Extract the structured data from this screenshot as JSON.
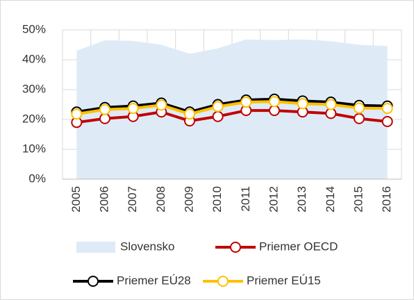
{
  "chart_data": {
    "type": "line",
    "categories": [
      "2005",
      "2006",
      "2007",
      "2008",
      "2009",
      "2010",
      "2011",
      "2012",
      "2013",
      "2014",
      "2015",
      "2016"
    ],
    "series": [
      {
        "name": "Slovensko",
        "type": "area",
        "color": "#deebf7",
        "values": [
          43,
          46.5,
          46.3,
          45,
          42,
          43.8,
          46.8,
          46.6,
          46.8,
          46.2,
          45,
          44.6
        ]
      },
      {
        "name": "Priemer OECD",
        "type": "line",
        "color": "#c00000",
        "values": [
          19,
          20.3,
          21,
          22.5,
          19.5,
          21,
          23,
          23,
          22.5,
          22,
          20.3,
          19.3
        ]
      },
      {
        "name": "Priemer EÚ28",
        "type": "line",
        "color": "#000000",
        "values": [
          22.5,
          24,
          24.5,
          25.5,
          22.5,
          25,
          26.5,
          26.8,
          26.2,
          25.8,
          24.7,
          24.5
        ]
      },
      {
        "name": "Priemer EÚ15",
        "type": "line",
        "color": "#ffc000",
        "values": [
          21.8,
          23.3,
          23.7,
          24.8,
          21.8,
          24.3,
          25.8,
          26,
          25.3,
          25,
          23.8,
          23.7
        ]
      }
    ],
    "ylim": [
      0,
      50
    ],
    "yticks": [
      {
        "value": 0,
        "label": "0%"
      },
      {
        "value": 10,
        "label": "10%"
      },
      {
        "value": 20,
        "label": "20%"
      },
      {
        "value": 30,
        "label": "30%"
      },
      {
        "value": 40,
        "label": "40%"
      },
      {
        "value": 50,
        "label": "50%"
      }
    ],
    "grid": true
  }
}
